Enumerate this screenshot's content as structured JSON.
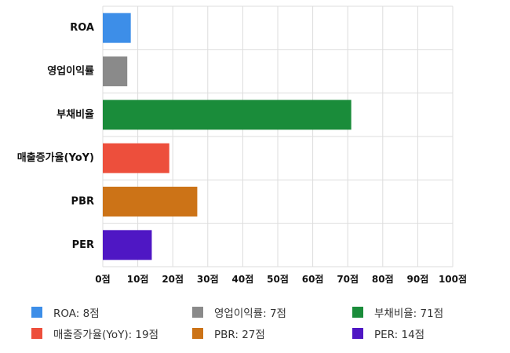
{
  "chart_data": {
    "type": "bar",
    "orientation": "horizontal",
    "categories": [
      "ROA",
      "영업이익률",
      "부채비율",
      "매출증가율(YoY)",
      "PBR",
      "PER"
    ],
    "values": [
      8,
      7,
      71,
      19,
      27,
      14
    ],
    "colors": [
      "#3d8ee8",
      "#8a8a8a",
      "#1a8c3a",
      "#ed4f3c",
      "#cc7317",
      "#4f17c4"
    ],
    "xlim": [
      0,
      100
    ],
    "xticks": [
      "0점",
      "10점",
      "20점",
      "30점",
      "40점",
      "50점",
      "60점",
      "70점",
      "80점",
      "90점",
      "100점"
    ],
    "grid": true,
    "legend_position": "bottom"
  },
  "legend": {
    "items": [
      "ROA: 8점",
      "영업이익률: 7점",
      "부채비율: 71점",
      "매출증가율(YoY): 19점",
      "PBR: 27점",
      "PER: 14점"
    ]
  }
}
